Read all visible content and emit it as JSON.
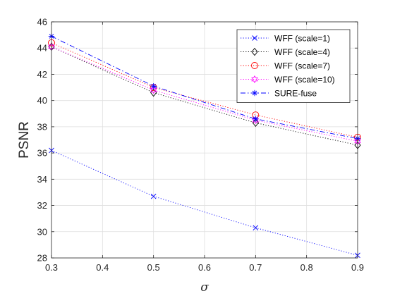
{
  "chart_data": {
    "type": "line",
    "xlabel": "σ",
    "ylabel": "PSNR",
    "xlim": [
      0.3,
      0.9
    ],
    "ylim": [
      28,
      46
    ],
    "xticks": [
      "0.3",
      "0.4",
      "0.5",
      "0.6",
      "0.7",
      "0.8",
      "0.9"
    ],
    "yticks": [
      "28",
      "30",
      "32",
      "34",
      "36",
      "38",
      "40",
      "42",
      "44",
      "46"
    ],
    "grid": true,
    "legend_position": "top-right",
    "x": [
      0.3,
      0.5,
      0.7,
      0.9
    ],
    "series": [
      {
        "name": "WFF (scale=1)",
        "values": [
          36.2,
          32.7,
          30.3,
          28.2
        ],
        "color": "#0000ff",
        "marker": "x",
        "line": "dotted"
      },
      {
        "name": "WFF (scale=4)",
        "values": [
          44.1,
          40.6,
          38.3,
          36.6
        ],
        "color": "#000000",
        "marker": "diamond",
        "line": "dotted"
      },
      {
        "name": "WFF (scale=7)",
        "values": [
          44.4,
          41.0,
          38.9,
          37.2
        ],
        "color": "#ff0000",
        "marker": "circle",
        "line": "dotted"
      },
      {
        "name": "WFF (scale=10)",
        "values": [
          44.1,
          40.8,
          38.5,
          36.9
        ],
        "color": "#ff00ff",
        "marker": "hexagram",
        "line": "dotted"
      },
      {
        "name": "SURE-fuse",
        "values": [
          44.9,
          41.1,
          38.6,
          37.1
        ],
        "color": "#0000ff",
        "marker": "asterisk",
        "line": "dashdot"
      }
    ]
  }
}
